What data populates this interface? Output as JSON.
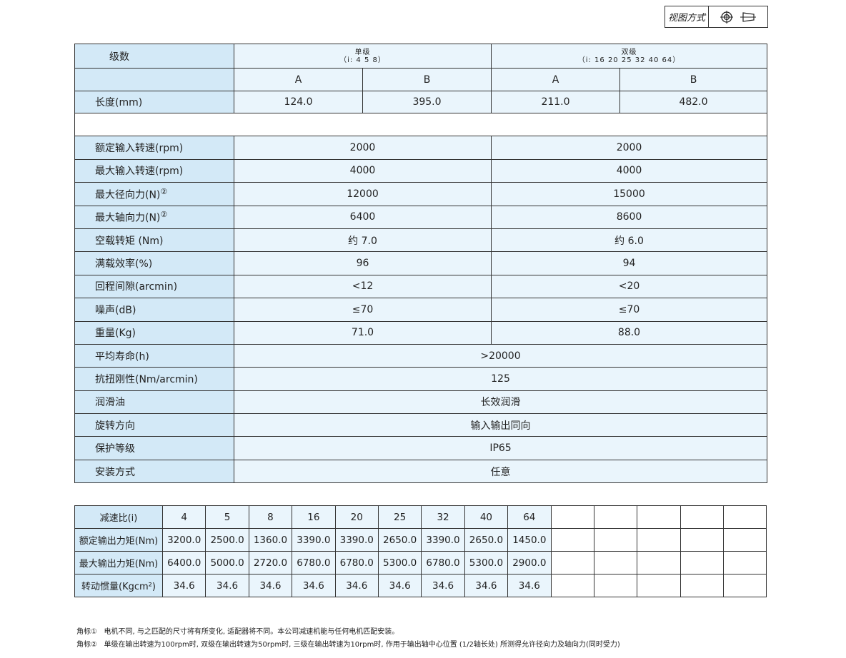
{
  "view_mode": {
    "label": "视图方式",
    "icons": [
      "crosshair-circle-icon",
      "tapered-shaft-icon"
    ]
  },
  "main_table": {
    "stage_label": "级数",
    "single": {
      "title": "单级",
      "ratios": "（i: 4 5 8）"
    },
    "double": {
      "title": "双级",
      "ratios": "（i: 16 20 25 32 40 64）"
    },
    "sub_cols": [
      "A",
      "B",
      "A",
      "B"
    ],
    "length": {
      "label": "长度(mm)",
      "values": [
        "124.0",
        "395.0",
        "211.0",
        "482.0"
      ]
    },
    "rows_two": [
      {
        "label": "额定输入转速(rpm)",
        "sup": "",
        "values": [
          "2000",
          "2000"
        ]
      },
      {
        "label": "最大输入转速(rpm)",
        "sup": "",
        "values": [
          "4000",
          "4000"
        ]
      },
      {
        "label": "最大径向力(N)",
        "sup": "②",
        "values": [
          "12000",
          "15000"
        ]
      },
      {
        "label": "最大轴向力(N)",
        "sup": "②",
        "values": [
          "6400",
          "8600"
        ]
      },
      {
        "label": "空载转矩 (Nm)",
        "sup": "",
        "values": [
          "约 7.0",
          "约 6.0"
        ]
      },
      {
        "label": "满载效率(%)",
        "sup": "",
        "values": [
          "96",
          "94"
        ]
      },
      {
        "label": "回程间隙(arcmin)",
        "sup": "",
        "values": [
          "<12",
          "<20"
        ]
      },
      {
        "label": "噪声(dB)",
        "sup": "",
        "values": [
          "≤70",
          "≤70"
        ]
      },
      {
        "label": "重量(Kg)",
        "sup": "",
        "values": [
          "71.0",
          "88.0"
        ]
      }
    ],
    "rows_one": [
      {
        "label": "平均寿命(h)",
        "value": ">20000"
      },
      {
        "label": "抗扭刚性(Nm/arcmin)",
        "value": "125"
      },
      {
        "label": "润滑油",
        "value": "长效润滑"
      },
      {
        "label": "旋转方向",
        "value": "输入输出同向"
      },
      {
        "label": "保护等级",
        "value": "IP65"
      },
      {
        "label": "安装方式",
        "value": "任意"
      }
    ]
  },
  "ratio_table": {
    "rows": [
      {
        "label": "减速比(i)",
        "values": [
          "4",
          "5",
          "8",
          "16",
          "20",
          "25",
          "32",
          "40",
          "64"
        ]
      },
      {
        "label": "额定输出力矩(Nm)",
        "values": [
          "3200.0",
          "2500.0",
          "1360.0",
          "3390.0",
          "3390.0",
          "2650.0",
          "3390.0",
          "2650.0",
          "1450.0"
        ]
      },
      {
        "label": "最大输出力矩(Nm)",
        "values": [
          "6400.0",
          "5000.0",
          "2720.0",
          "6780.0",
          "6780.0",
          "5300.0",
          "6780.0",
          "5300.0",
          "2900.0"
        ]
      },
      {
        "label": "转动惯量(Kgcm²)",
        "values": [
          "34.6",
          "34.6",
          "34.6",
          "34.6",
          "34.6",
          "34.6",
          "34.6",
          "34.6",
          "34.6"
        ]
      }
    ]
  },
  "notes": [
    {
      "mark": "角标①",
      "text": "电机不同, 与之匹配的尺寸将有所变化, 适配器将不同。本公司减速机能与任何电机匹配安装。"
    },
    {
      "mark": "角标②",
      "text": "单级在输出转速为100rpm时, 双级在输出转速为50rpm时, 三级在输出转速为10rpm时, 作用于输出轴中心位置 (1/2轴长处) 所测得允许径向力及轴向力(同时受力)"
    }
  ],
  "colors": {
    "label_bg": "#d3e9f7",
    "value_bg": "#eaf5fc",
    "border": "#333333"
  }
}
